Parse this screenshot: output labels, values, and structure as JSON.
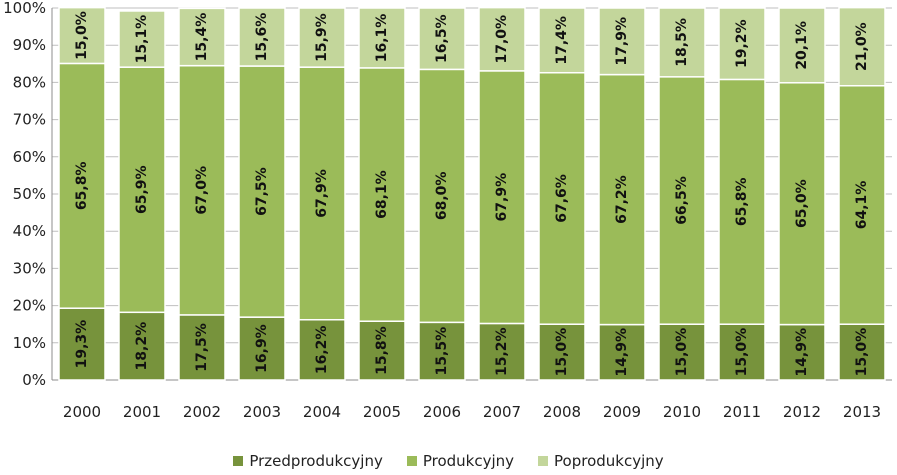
{
  "chart_data": {
    "type": "bar",
    "stacked": true,
    "orientation": "vertical",
    "categories": [
      "2000",
      "2001",
      "2002",
      "2003",
      "2004",
      "2005",
      "2006",
      "2007",
      "2008",
      "2009",
      "2010",
      "2011",
      "2012",
      "2013"
    ],
    "series": [
      {
        "name": "Przedprodukcyjny",
        "color": "#77933c",
        "values": [
          19.3,
          18.2,
          17.5,
          16.9,
          16.2,
          15.8,
          15.5,
          15.2,
          15.0,
          14.9,
          15.0,
          15.0,
          14.9,
          15.0
        ],
        "labels": [
          "19,3%",
          "18,2%",
          "17,5%",
          "16,9%",
          "16,2%",
          "15,8%",
          "15,5%",
          "15,2%",
          "15,0%",
          "14,9%",
          "15,0%",
          "15,0%",
          "14,9%",
          "15,0%"
        ]
      },
      {
        "name": "Produkcyjny",
        "color": "#9bbb59",
        "values": [
          65.8,
          65.9,
          67.0,
          67.5,
          67.9,
          68.1,
          68.0,
          67.9,
          67.6,
          67.2,
          66.5,
          65.8,
          65.0,
          64.1
        ],
        "labels": [
          "65,8%",
          "65,9%",
          "67,0%",
          "67,5%",
          "67,9%",
          "68,1%",
          "68,0%",
          "67,9%",
          "67,6%",
          "67,2%",
          "66,5%",
          "65,8%",
          "65,0%",
          "64,1%"
        ]
      },
      {
        "name": "Poprodukcyjny",
        "color": "#c3d69b",
        "values": [
          15.0,
          15.1,
          15.4,
          15.6,
          15.9,
          16.1,
          16.5,
          17.0,
          17.4,
          17.9,
          18.5,
          19.2,
          20.1,
          21.0
        ],
        "labels": [
          "15,0%",
          "15,1%",
          "15,4%",
          "15,6%",
          "15,9%",
          "16,1%",
          "16,5%",
          "17,0%",
          "17,4%",
          "17,9%",
          "18,5%",
          "19,2%",
          "20,1%",
          "21,0%"
        ]
      }
    ],
    "yticks": [
      "0%",
      "10%",
      "20%",
      "30%",
      "40%",
      "50%",
      "60%",
      "70%",
      "80%",
      "90%",
      "100%"
    ],
    "ylim": [
      0,
      100
    ],
    "grid": true,
    "legend_position": "bottom"
  }
}
